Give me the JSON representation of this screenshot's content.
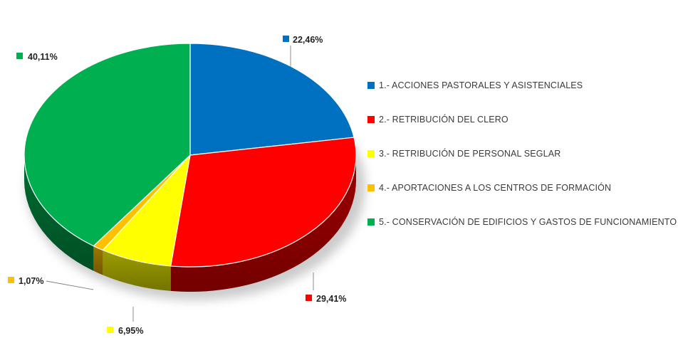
{
  "chart_data": {
    "type": "pie",
    "title": "",
    "categories": [
      "1.- ACCIONES PASTORALES Y ASISTENCIALES",
      "2.- RETRIBUCIÓN DEL CLERO",
      "3.- RETRIBUCIÓN DE PERSONAL SEGLAR",
      "4.- APORTACIONES A LOS CENTROS DE FORMACIÓN",
      "5.- CONSERVACIÓN DE EDIFICIOS Y GASTOS DE FUNCIONAMIENTO"
    ],
    "values": [
      22.46,
      29.41,
      6.95,
      1.07,
      40.11
    ],
    "data_labels": [
      "22,46%",
      "29,41%",
      "6,95%",
      "1,07%",
      "40,11%"
    ],
    "colors": [
      "#0070C0",
      "#FF0000",
      "#FFFF00",
      "#FFC000",
      "#00B050"
    ],
    "legend_position": "right",
    "style": "3d"
  }
}
